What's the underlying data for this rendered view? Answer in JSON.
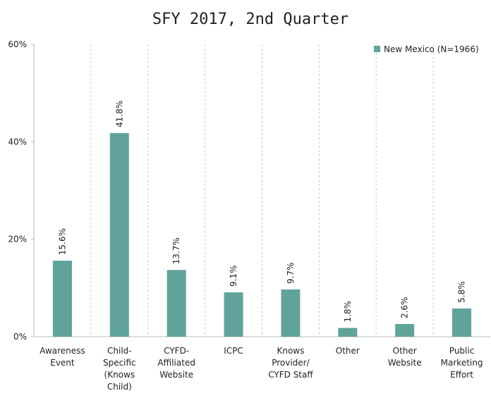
{
  "chart_data": {
    "type": "bar",
    "title": "SFY 2017, 2nd Quarter",
    "categories": [
      "Awareness\nEvent",
      "Child-\nSpecific\n(Knows\nChild)",
      "CYFD-\nAffiliated\nWebsite",
      "ICPC",
      "Knows\nProvider/\nCYFD Staff",
      "Other",
      "Other\nWebsite",
      "Public\nMarketing\nEffort"
    ],
    "series": [
      {
        "name": "New Mexico (N=1966)",
        "color": "#5fa39b",
        "values": [
          15.6,
          41.8,
          13.7,
          9.1,
          9.7,
          1.8,
          2.6,
          5.8
        ],
        "value_labels": [
          "15.6%",
          "41.8%",
          "13.7%",
          "9.1%",
          "9.7%",
          "1.8%",
          "2.6%",
          "5.8%"
        ]
      }
    ],
    "ylim": [
      0,
      60
    ],
    "yticks": [
      {
        "value": 0,
        "label": "0%"
      },
      {
        "value": 20,
        "label": "20%"
      },
      {
        "value": 40,
        "label": "40%"
      },
      {
        "value": 60,
        "label": "60%"
      }
    ],
    "legend": "top-right"
  }
}
